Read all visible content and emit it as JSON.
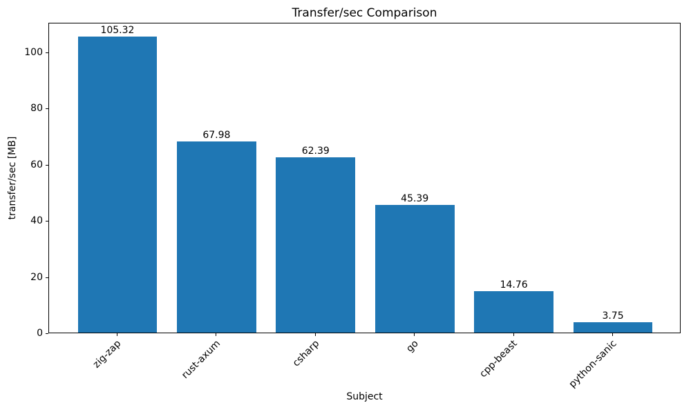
{
  "chart_data": {
    "type": "bar",
    "title": "Transfer/sec Comparison",
    "xlabel": "Subject",
    "ylabel": "transfer/sec [MB]",
    "categories": [
      "zig-zap",
      "rust-axum",
      "csharp",
      "go",
      "cpp-beast",
      "python-sanic"
    ],
    "values": [
      105.32,
      67.98,
      62.39,
      45.39,
      14.76,
      3.75
    ],
    "bar_labels": [
      "105.32",
      "67.98",
      "62.39",
      "45.39",
      "14.76",
      "3.75"
    ],
    "yticks": [
      0,
      20,
      40,
      60,
      80,
      100
    ],
    "ylim": [
      0,
      110.59
    ],
    "xlim": [
      -0.69,
      5.69
    ],
    "bar_width": 0.8,
    "bar_color": "#1f77b4",
    "grid": false,
    "legend": "none",
    "x_tick_rotation_deg": 45
  }
}
